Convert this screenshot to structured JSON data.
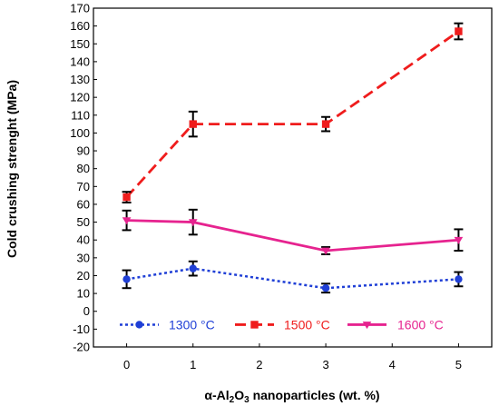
{
  "chart_data": {
    "type": "line",
    "title": "",
    "xlabel_prefix": "α-Al",
    "xlabel_sub1": "2",
    "xlabel_mid": "O",
    "xlabel_sub2": "3",
    "xlabel_suffix": " nanoparticles (wt. %)",
    "ylabel": "Cold crushing strenght  (MPa)",
    "xlim": [
      -0.5,
      5.5
    ],
    "ylim": [
      -20,
      170
    ],
    "xticks": [
      "0",
      "1",
      "2",
      "3",
      "4",
      "5"
    ],
    "yticks": [
      "-20",
      "-10",
      "0",
      "10",
      "20",
      "30",
      "40",
      "50",
      "60",
      "70",
      "80",
      "90",
      "100",
      "110",
      "120",
      "130",
      "140",
      "150",
      "160",
      "170"
    ],
    "x": [
      0,
      1,
      3,
      5
    ],
    "grid": false,
    "legend_position": "bottom-center",
    "series": [
      {
        "name": "1300 °C",
        "values": [
          18,
          24,
          13,
          18
        ],
        "errors": [
          5,
          4,
          2.5,
          4
        ],
        "color": "#1f3fd6",
        "dash": "dotted",
        "marker": "circle"
      },
      {
        "name": "1500  °C",
        "values": [
          64,
          105,
          105,
          157
        ],
        "errors": [
          3,
          7,
          4,
          4.5
        ],
        "color": "#ef1c1c",
        "dash": "dashed",
        "marker": "square"
      },
      {
        "name": "1600  °C",
        "values": [
          51,
          50,
          34,
          40
        ],
        "errors": [
          5.5,
          7,
          2,
          6
        ],
        "color": "#e6238f",
        "dash": "solid",
        "marker": "triangle-down"
      }
    ]
  }
}
